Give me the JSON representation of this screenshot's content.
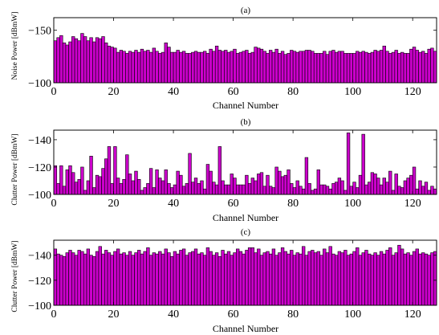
{
  "figure": {
    "bar_color": "#cc00cc",
    "edge_color": "#000000",
    "background": "#ffffff"
  },
  "chart_data": [
    {
      "type": "bar",
      "title": "(a)",
      "xlabel": "Channel Number",
      "ylabel": "Noise Power [dBmW]",
      "xlim": [
        0,
        128
      ],
      "ylim": [
        -100,
        -162
      ],
      "x_ticks": [
        0,
        20,
        40,
        60,
        80,
        100,
        120
      ],
      "x_tick_labels": [
        "0",
        "20",
        "40",
        "60",
        "80",
        "100",
        "120"
      ],
      "y_ticks": [
        -100,
        -150
      ],
      "y_tick_labels": [
        "−100",
        "−150"
      ],
      "values": [
        -140,
        -143,
        -145,
        -138,
        -136,
        -139,
        -144,
        -142,
        -140,
        -147,
        -144,
        -140,
        -143,
        -139,
        -143,
        -142,
        -144,
        -138,
        -135,
        -134,
        -133,
        -129,
        -131,
        -130,
        -128,
        -130,
        -129,
        -131,
        -129,
        -132,
        -130,
        -131,
        -129,
        -133,
        -130,
        -128,
        -129,
        -138,
        -134,
        -129,
        -129,
        -131,
        -129,
        -130,
        -128,
        -128,
        -129,
        -130,
        -129,
        -129,
        -130,
        -128,
        -132,
        -130,
        -135,
        -131,
        -130,
        -131,
        -129,
        -130,
        -132,
        -128,
        -129,
        -130,
        -131,
        -128,
        -129,
        -134,
        -133,
        -132,
        -130,
        -128,
        -131,
        -129,
        -132,
        -128,
        -130,
        -127,
        -128,
        -131,
        -130,
        -129,
        -130,
        -130,
        -131,
        -131,
        -130,
        -128,
        -128,
        -128,
        -130,
        -127,
        -130,
        -131,
        -129,
        -130,
        -130,
        -128,
        -128,
        -128,
        -128,
        -130,
        -129,
        -130,
        -129,
        -128,
        -129,
        -131,
        -130,
        -131,
        -135,
        -130,
        -128,
        -129,
        -131,
        -128,
        -129,
        -128,
        -128,
        -132,
        -134,
        -131,
        -129,
        -130,
        -128,
        -132,
        -133,
        -130
      ]
    },
    {
      "type": "bar",
      "title": "(b)",
      "xlabel": "Channel Number",
      "ylabel": "Clutter Power [dBmW]",
      "xlim": [
        0,
        128
      ],
      "ylim": [
        -100,
        -147
      ],
      "x_ticks": [
        0,
        20,
        40,
        60,
        80,
        100,
        120
      ],
      "x_tick_labels": [
        "0",
        "20",
        "40",
        "60",
        "80",
        "100",
        "120"
      ],
      "y_ticks": [
        -100,
        -120,
        -140
      ],
      "y_tick_labels": [
        "−100",
        "−120",
        "−140"
      ],
      "values": [
        -121,
        -108,
        -121,
        -106,
        -118,
        -121,
        -116,
        -109,
        -111,
        -120,
        -103,
        -110,
        -128,
        -105,
        -114,
        -113,
        -119,
        -126,
        -135,
        -108,
        -135,
        -112,
        -108,
        -111,
        -129,
        -115,
        -110,
        -117,
        -111,
        -103,
        -105,
        -108,
        -119,
        -105,
        -118,
        -112,
        -110,
        -118,
        -108,
        -105,
        -107,
        -117,
        -114,
        -106,
        -108,
        -130,
        -109,
        -112,
        -108,
        -110,
        -104,
        -122,
        -117,
        -109,
        -107,
        -135,
        -110,
        -107,
        -107,
        -115,
        -112,
        -107,
        -107,
        -107,
        -114,
        -108,
        -112,
        -110,
        -115,
        -116,
        -106,
        -114,
        -106,
        -105,
        -120,
        -117,
        -113,
        -114,
        -118,
        -108,
        -105,
        -110,
        -106,
        -104,
        -127,
        -108,
        -103,
        -104,
        -118,
        -107,
        -107,
        -106,
        -104,
        -108,
        -109,
        -112,
        -110,
        -103,
        -145,
        -106,
        -109,
        -105,
        -114,
        -144,
        -107,
        -109,
        -116,
        -115,
        -112,
        -107,
        -112,
        -109,
        -117,
        -103,
        -115,
        -106,
        -105,
        -110,
        -112,
        -114,
        -120,
        -104,
        -110,
        -106,
        -109,
        -103,
        -106,
        -104
      ]
    },
    {
      "type": "bar",
      "title": "(c)",
      "xlabel": "Channel Number",
      "ylabel": "Clutter Power [dBmW]",
      "xlim": [
        0,
        128
      ],
      "ylim": [
        -100,
        -152
      ],
      "x_ticks": [
        0,
        20,
        40,
        60,
        80,
        100,
        120
      ],
      "x_tick_labels": [
        "0",
        "20",
        "40",
        "60",
        "80",
        "100",
        "120"
      ],
      "y_ticks": [
        -100,
        -120,
        -140
      ],
      "y_tick_labels": [
        "−100",
        "−120",
        "−140"
      ],
      "values": [
        -145,
        -141,
        -140,
        -139,
        -142,
        -144,
        -142,
        -140,
        -144,
        -143,
        -141,
        -145,
        -140,
        -139,
        -143,
        -147,
        -141,
        -144,
        -142,
        -140,
        -143,
        -145,
        -141,
        -142,
        -140,
        -143,
        -140,
        -142,
        -144,
        -141,
        -143,
        -146,
        -140,
        -142,
        -141,
        -143,
        -141,
        -145,
        -142,
        -139,
        -143,
        -141,
        -144,
        -145,
        -140,
        -142,
        -143,
        -145,
        -141,
        -142,
        -140,
        -146,
        -143,
        -140,
        -142,
        -139,
        -144,
        -141,
        -143,
        -140,
        -142,
        -145,
        -143,
        -141,
        -144,
        -146,
        -146,
        -142,
        -145,
        -140,
        -142,
        -143,
        -141,
        -145,
        -140,
        -142,
        -146,
        -143,
        -141,
        -144,
        -140,
        -142,
        -141,
        -147,
        -140,
        -143,
        -144,
        -142,
        -143,
        -140,
        -145,
        -142,
        -147,
        -141,
        -140,
        -143,
        -142,
        -144,
        -140,
        -141,
        -143,
        -146,
        -140,
        -142,
        -144,
        -141,
        -140,
        -142,
        -140,
        -143,
        -141,
        -144,
        -146,
        -140,
        -142,
        -148,
        -145,
        -141,
        -142,
        -140,
        -143,
        -145,
        -141,
        -142,
        -141,
        -140,
        -142,
        -143
      ]
    }
  ]
}
